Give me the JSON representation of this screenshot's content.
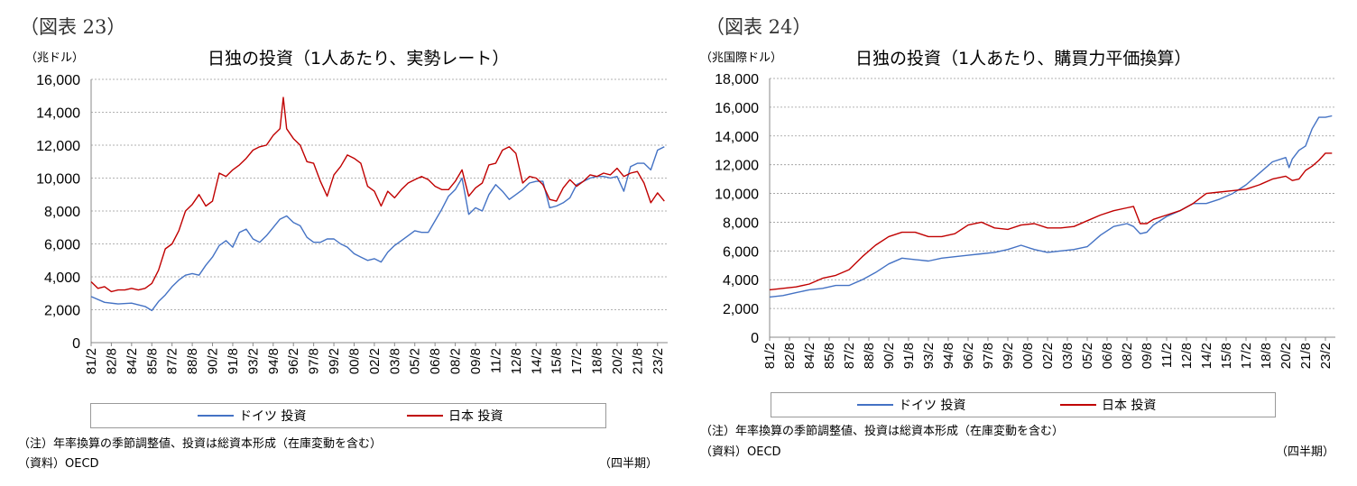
{
  "charts": [
    {
      "fig_label": "（図表 23）",
      "title": "日独の投資（1人あたり、実勢レート）",
      "unit": "（兆ドル）",
      "note": "（注）年率換算の季節調整値、投資は総資本形成（在庫変動を含む）",
      "source": "（資料）OECD",
      "period_label": "（四半期）",
      "legend": [
        "ドイツ 投資",
        "日本 投資"
      ]
    },
    {
      "fig_label": "（図表 24）",
      "title": "日独の投資（1人あたり、購買力平価換算）",
      "unit": "（兆国際ドル）",
      "note": "（注）年率換算の季節調整値、投資は総資本形成（在庫変動を含む）",
      "source": "（資料）OECD",
      "period_label": "（四半期）",
      "legend": [
        "ドイツ 投資",
        "日本 投資"
      ]
    }
  ],
  "colors": {
    "germany": "#4472c4",
    "japan": "#c00000",
    "grid": "#999999",
    "axis": "#888888"
  },
  "chart_data": [
    {
      "type": "line",
      "title": "日独の投資（1人あたり、実勢レート）",
      "ylabel": "（兆ドル）",
      "xlabel": "（四半期）",
      "ylim": [
        0,
        16000
      ],
      "yticks": [
        "0",
        "2,000",
        "4,000",
        "6,000",
        "8,000",
        "10,000",
        "12,000",
        "14,000",
        "16,000"
      ],
      "grid": true,
      "legend_position": "bottom",
      "x_range": [
        1981.0,
        2023.75
      ],
      "x_tick_labels": [
        "81/2",
        "82/8",
        "84/2",
        "85/8",
        "87/2",
        "88/8",
        "90/2",
        "91/8",
        "93/2",
        "94/8",
        "96/2",
        "97/8",
        "99/2",
        "00/8",
        "02/2",
        "03/8",
        "05/2",
        "06/8",
        "08/2",
        "09/8",
        "11/2",
        "12/8",
        "14/2",
        "15/8",
        "17/2",
        "18/8",
        "20/2",
        "21/8",
        "23/2"
      ],
      "series": [
        {
          "name": "ドイツ 投資",
          "color": "#4472c4",
          "x": [
            1981.0,
            1982.0,
            1983.0,
            1984.0,
            1985.0,
            1985.5,
            1986.0,
            1986.5,
            1987.0,
            1987.5,
            1988.0,
            1988.5,
            1989.0,
            1989.5,
            1990.0,
            1990.5,
            1991.0,
            1991.5,
            1992.0,
            1992.5,
            1993.0,
            1993.5,
            1994.0,
            1994.5,
            1995.0,
            1995.5,
            1996.0,
            1996.5,
            1997.0,
            1997.5,
            1998.0,
            1998.5,
            1999.0,
            1999.5,
            2000.0,
            2000.5,
            2001.0,
            2001.5,
            2002.0,
            2002.5,
            2003.0,
            2003.5,
            2004.0,
            2004.5,
            2005.0,
            2005.5,
            2006.0,
            2006.5,
            2007.0,
            2007.5,
            2008.0,
            2008.5,
            2009.0,
            2009.5,
            2010.0,
            2010.5,
            2011.0,
            2011.5,
            2012.0,
            2012.5,
            2013.0,
            2013.5,
            2014.0,
            2014.5,
            2015.0,
            2015.5,
            2016.0,
            2016.5,
            2017.0,
            2017.5,
            2018.0,
            2018.5,
            2019.0,
            2019.5,
            2020.0,
            2020.5,
            2021.0,
            2021.5,
            2022.0,
            2022.5,
            2023.0,
            2023.5
          ],
          "values": [
            2800,
            2450,
            2350,
            2400,
            2200,
            1950,
            2500,
            2900,
            3400,
            3800,
            4100,
            4200,
            4100,
            4700,
            5200,
            5900,
            6200,
            5800,
            6700,
            6900,
            6300,
            6100,
            6500,
            7000,
            7500,
            7700,
            7300,
            7100,
            6400,
            6100,
            6100,
            6300,
            6300,
            6000,
            5800,
            5400,
            5200,
            5000,
            5100,
            4900,
            5500,
            5900,
            6200,
            6500,
            6800,
            6700,
            6700,
            7400,
            8100,
            8900,
            9300,
            10000,
            7800,
            8200,
            8000,
            9000,
            9600,
            9200,
            8700,
            9000,
            9300,
            9700,
            9800,
            9800,
            8200,
            8300,
            8500,
            8800,
            9600,
            9800,
            10000,
            10100,
            10100,
            10000,
            10100,
            9200,
            10700,
            10900,
            10900,
            10500,
            11700,
            11900
          ]
        },
        {
          "name": "日本 投資",
          "color": "#c00000",
          "x": [
            1981.0,
            1981.5,
            1982.0,
            1982.5,
            1983.0,
            1983.5,
            1984.0,
            1984.5,
            1985.0,
            1985.5,
            1986.0,
            1986.5,
            1987.0,
            1987.5,
            1988.0,
            1988.5,
            1989.0,
            1989.5,
            1990.0,
            1990.5,
            1991.0,
            1991.5,
            1992.0,
            1992.5,
            1993.0,
            1993.5,
            1994.0,
            1994.5,
            1995.0,
            1995.25,
            1995.5,
            1996.0,
            1996.5,
            1997.0,
            1997.5,
            1998.0,
            1998.5,
            1999.0,
            1999.5,
            2000.0,
            2000.5,
            2001.0,
            2001.5,
            2002.0,
            2002.5,
            2003.0,
            2003.5,
            2004.0,
            2004.5,
            2005.0,
            2005.5,
            2006.0,
            2006.5,
            2007.0,
            2007.5,
            2008.0,
            2008.5,
            2009.0,
            2009.5,
            2010.0,
            2010.5,
            2011.0,
            2011.5,
            2012.0,
            2012.5,
            2013.0,
            2013.5,
            2014.0,
            2014.5,
            2015.0,
            2015.5,
            2016.0,
            2016.5,
            2017.0,
            2017.5,
            2018.0,
            2018.5,
            2019.0,
            2019.5,
            2020.0,
            2020.5,
            2021.0,
            2021.5,
            2022.0,
            2022.5,
            2023.0,
            2023.5
          ],
          "values": [
            3700,
            3300,
            3400,
            3100,
            3200,
            3200,
            3300,
            3200,
            3300,
            3600,
            4400,
            5700,
            6000,
            6800,
            8000,
            8400,
            9000,
            8300,
            8600,
            10300,
            10100,
            10500,
            10800,
            11200,
            11700,
            11900,
            12000,
            12600,
            13000,
            14900,
            13000,
            12400,
            12000,
            11000,
            10900,
            9800,
            8900,
            10200,
            10700,
            11400,
            11200,
            10900,
            9500,
            9200,
            8300,
            9200,
            8800,
            9300,
            9700,
            9900,
            10100,
            9900,
            9500,
            9300,
            9300,
            9800,
            10500,
            8900,
            9400,
            9700,
            10800,
            10900,
            11700,
            11900,
            11500,
            9700,
            10100,
            10000,
            9600,
            8700,
            8600,
            9400,
            9900,
            9500,
            9800,
            10200,
            10100,
            10300,
            10200,
            10600,
            10100,
            10300,
            10400,
            9700,
            8500,
            9100,
            8600
          ]
        }
      ]
    },
    {
      "type": "line",
      "title": "日独の投資（1人あたり、購買力平価換算）",
      "ylabel": "（兆国際ドル）",
      "xlabel": "（四半期）",
      "ylim": [
        0,
        18000
      ],
      "yticks": [
        "0",
        "2,000",
        "4,000",
        "6,000",
        "8,000",
        "10,000",
        "12,000",
        "14,000",
        "16,000",
        "18,000"
      ],
      "grid": true,
      "legend_position": "bottom",
      "x_range": [
        1981.0,
        2023.75
      ],
      "x_tick_labels": [
        "81/2",
        "82/8",
        "84/2",
        "85/8",
        "87/2",
        "88/8",
        "90/2",
        "91/8",
        "93/2",
        "94/8",
        "96/2",
        "97/8",
        "99/2",
        "00/8",
        "02/2",
        "03/8",
        "05/2",
        "06/8",
        "08/2",
        "09/8",
        "11/2",
        "12/8",
        "14/2",
        "15/8",
        "17/2",
        "18/8",
        "20/2",
        "21/8",
        "23/2"
      ],
      "series": [
        {
          "name": "ドイツ 投資",
          "color": "#4472c4",
          "x": [
            1981.0,
            1982.0,
            1983.0,
            1984.0,
            1985.0,
            1986.0,
            1987.0,
            1988.0,
            1989.0,
            1990.0,
            1991.0,
            1992.0,
            1993.0,
            1994.0,
            1995.0,
            1996.0,
            1997.0,
            1998.0,
            1999.0,
            2000.0,
            2001.0,
            2002.0,
            2003.0,
            2004.0,
            2005.0,
            2006.0,
            2007.0,
            2008.0,
            2008.5,
            2009.0,
            2009.5,
            2010.0,
            2011.0,
            2012.0,
            2013.0,
            2014.0,
            2015.0,
            2016.0,
            2017.0,
            2018.0,
            2019.0,
            2020.0,
            2020.25,
            2020.5,
            2021.0,
            2021.5,
            2022.0,
            2022.5,
            2023.0,
            2023.5
          ],
          "values": [
            2800,
            2900,
            3100,
            3300,
            3400,
            3600,
            3600,
            4000,
            4500,
            5100,
            5500,
            5400,
            5300,
            5500,
            5600,
            5700,
            5800,
            5900,
            6100,
            6400,
            6100,
            5900,
            6000,
            6100,
            6300,
            7100,
            7700,
            7900,
            7700,
            7200,
            7300,
            7800,
            8400,
            8800,
            9300,
            9300,
            9600,
            10000,
            10600,
            11400,
            12200,
            12500,
            11800,
            12400,
            13000,
            13300,
            14500,
            15300,
            15300,
            15400
          ]
        },
        {
          "name": "日本 投資",
          "color": "#c00000",
          "x": [
            1981.0,
            1982.0,
            1983.0,
            1984.0,
            1985.0,
            1986.0,
            1987.0,
            1988.0,
            1989.0,
            1990.0,
            1991.0,
            1992.0,
            1993.0,
            1994.0,
            1995.0,
            1996.0,
            1997.0,
            1998.0,
            1999.0,
            2000.0,
            2001.0,
            2002.0,
            2003.0,
            2004.0,
            2005.0,
            2006.0,
            2007.0,
            2008.0,
            2008.5,
            2009.0,
            2009.5,
            2010.0,
            2011.0,
            2012.0,
            2013.0,
            2014.0,
            2015.0,
            2016.0,
            2017.0,
            2018.0,
            2019.0,
            2020.0,
            2020.5,
            2021.0,
            2021.5,
            2022.0,
            2022.5,
            2023.0,
            2023.5
          ],
          "values": [
            3300,
            3400,
            3500,
            3700,
            4100,
            4300,
            4700,
            5600,
            6400,
            7000,
            7300,
            7300,
            7000,
            7000,
            7200,
            7800,
            8000,
            7600,
            7500,
            7800,
            7900,
            7600,
            7600,
            7700,
            8100,
            8500,
            8800,
            9000,
            9100,
            7900,
            7900,
            8200,
            8500,
            8800,
            9300,
            10000,
            10100,
            10200,
            10300,
            10600,
            11000,
            11200,
            10900,
            11000,
            11600,
            11900,
            12300,
            12800,
            12800
          ]
        }
      ]
    }
  ]
}
